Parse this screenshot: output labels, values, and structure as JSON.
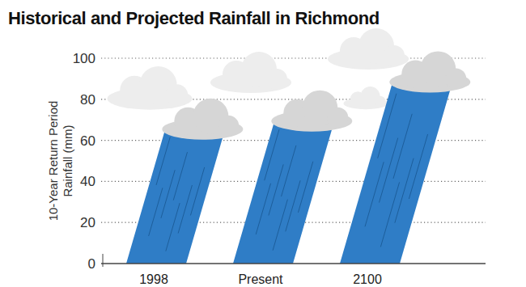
{
  "chart_data": {
    "type": "bar",
    "title": "Historical and Projected Rainfall in Richmond",
    "y_label": "10-Year Return Period Rainfall (mm)",
    "categories": [
      "1998",
      "Present",
      "2100"
    ],
    "values": [
      67,
      71,
      90
    ],
    "color": "#2f7dc6",
    "ylim": [
      0,
      100
    ],
    "yticks": [
      0,
      20,
      40,
      60,
      80,
      100
    ],
    "grid": true
  }
}
